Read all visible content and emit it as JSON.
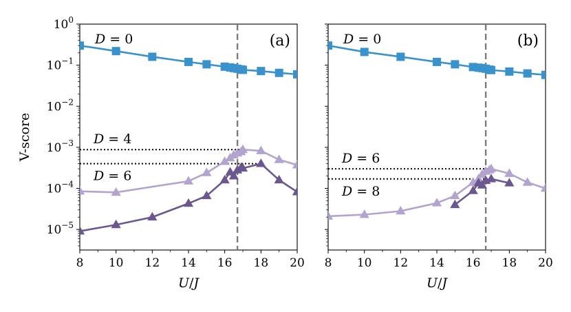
{
  "chart_data": [
    {
      "type": "line",
      "panel_label": "(a)",
      "xlabel_var1": "U",
      "xlabel_sep": "/",
      "xlabel_var2": "J",
      "ylabel": "V-score",
      "xlim": [
        8,
        20
      ],
      "ylim_log10": [
        -5.5,
        0
      ],
      "yscale": "log",
      "xticks": [
        8,
        10,
        12,
        14,
        16,
        18,
        20
      ],
      "yticks": [
        {
          "exp": 0,
          "base": "10",
          "power": "0"
        },
        {
          "exp": -1,
          "base": "10",
          "power": "−1"
        },
        {
          "exp": -2,
          "base": "10",
          "power": "−2"
        },
        {
          "exp": -3,
          "base": "10",
          "power": "−3"
        },
        {
          "exp": -4,
          "base": "10",
          "power": "−4"
        },
        {
          "exp": -5,
          "base": "10",
          "power": "−5"
        }
      ],
      "critical_line_x": 16.7,
      "series": [
        {
          "name": "D = 0",
          "color": "#3a92cc",
          "marker": "square",
          "x": [
            8,
            10,
            12,
            14,
            15,
            16,
            16.3,
            16.5,
            16.7,
            16.9,
            17,
            18,
            19,
            20
          ],
          "y": [
            0.3,
            0.22,
            0.16,
            0.12,
            0.105,
            0.092,
            0.088,
            0.085,
            0.082,
            0.079,
            0.077,
            0.072,
            0.065,
            0.06
          ]
        },
        {
          "name": "D = 4",
          "color": "#b3a4cf",
          "marker": "triangle",
          "x": [
            8,
            10,
            14,
            15,
            16,
            16.3,
            16.5,
            16.7,
            16.9,
            17,
            18,
            19,
            20
          ],
          "y": [
            8.5e-05,
            8e-05,
            0.00015,
            0.00024,
            0.00045,
            0.00055,
            0.00065,
            0.00072,
            0.00078,
            0.00088,
            0.00082,
            0.0005,
            0.00037
          ]
        },
        {
          "name": "D = 6",
          "color": "#6b578f",
          "marker": "triangle",
          "x": [
            8,
            10,
            12,
            14,
            15,
            16,
            16.3,
            16.5,
            16.7,
            16.9,
            17,
            18,
            19,
            20
          ],
          "y": [
            9.1e-06,
            1.3e-05,
            2e-05,
            4.3e-05,
            6.6e-05,
            0.00016,
            0.00025,
            0.0002,
            0.00028,
            0.00032,
            0.00031,
            0.0004,
            0.00016,
            8.2e-05
          ]
        }
      ],
      "hlines": [
        {
          "label_var": "D",
          "label_rest": " = 4",
          "y": 0.00088,
          "x_end": 17,
          "label_pos": "above"
        },
        {
          "label_var": "D",
          "label_rest": " = 6",
          "y": 0.0004,
          "x_end": 18,
          "label_pos": "below"
        }
      ],
      "annotation_top": {
        "var": "D",
        "rest": " = 0"
      }
    },
    {
      "type": "line",
      "panel_label": "(b)",
      "xlabel_var1": "U",
      "xlabel_sep": "/",
      "xlabel_var2": "J",
      "xlim": [
        8,
        20
      ],
      "ylim_log10": [
        -5.5,
        0
      ],
      "yscale": "log",
      "xticks": [
        8,
        10,
        12,
        14,
        16,
        18,
        20
      ],
      "critical_line_x": 16.7,
      "series": [
        {
          "name": "D = 0",
          "color": "#3a92cc",
          "marker": "square",
          "x": [
            8,
            10,
            12,
            14,
            15,
            16,
            16.3,
            16.5,
            16.7,
            16.9,
            17,
            18,
            19,
            20
          ],
          "y": [
            0.3,
            0.21,
            0.16,
            0.12,
            0.105,
            0.09,
            0.087,
            0.085,
            0.082,
            0.078,
            0.076,
            0.07,
            0.063,
            0.058
          ]
        },
        {
          "name": "D = 6",
          "color": "#b3a4cf",
          "marker": "triangle",
          "x": [
            8,
            10,
            12,
            14,
            15,
            16,
            16.3,
            16.5,
            16.7,
            16.9,
            17,
            18,
            19,
            20
          ],
          "y": [
            2.1e-05,
            2.3e-05,
            2.8e-05,
            4.4e-05,
            6.6e-05,
            0.00014,
            0.00017,
            0.00022,
            0.00026,
            0.00028,
            0.0003,
            0.00023,
            0.00014,
            0.0001
          ]
        },
        {
          "name": "D = 8",
          "color": "#6b578f",
          "marker": "triangle",
          "x": [
            15,
            16,
            16.3,
            16.5,
            16.7,
            17,
            18
          ],
          "y": [
            4e-05,
            8.8e-05,
            0.000135,
            0.00012,
            0.000155,
            0.00017,
            0.000135
          ]
        }
      ],
      "hlines": [
        {
          "label_var": "D",
          "label_rest": " = 6",
          "y": 0.0003,
          "x_end": 17,
          "label_pos": "above"
        },
        {
          "label_var": "D",
          "label_rest": " = 8",
          "y": 0.00017,
          "x_end": 17,
          "label_pos": "below"
        }
      ],
      "annotation_top": {
        "var": "D",
        "rest": " = 0"
      }
    }
  ]
}
